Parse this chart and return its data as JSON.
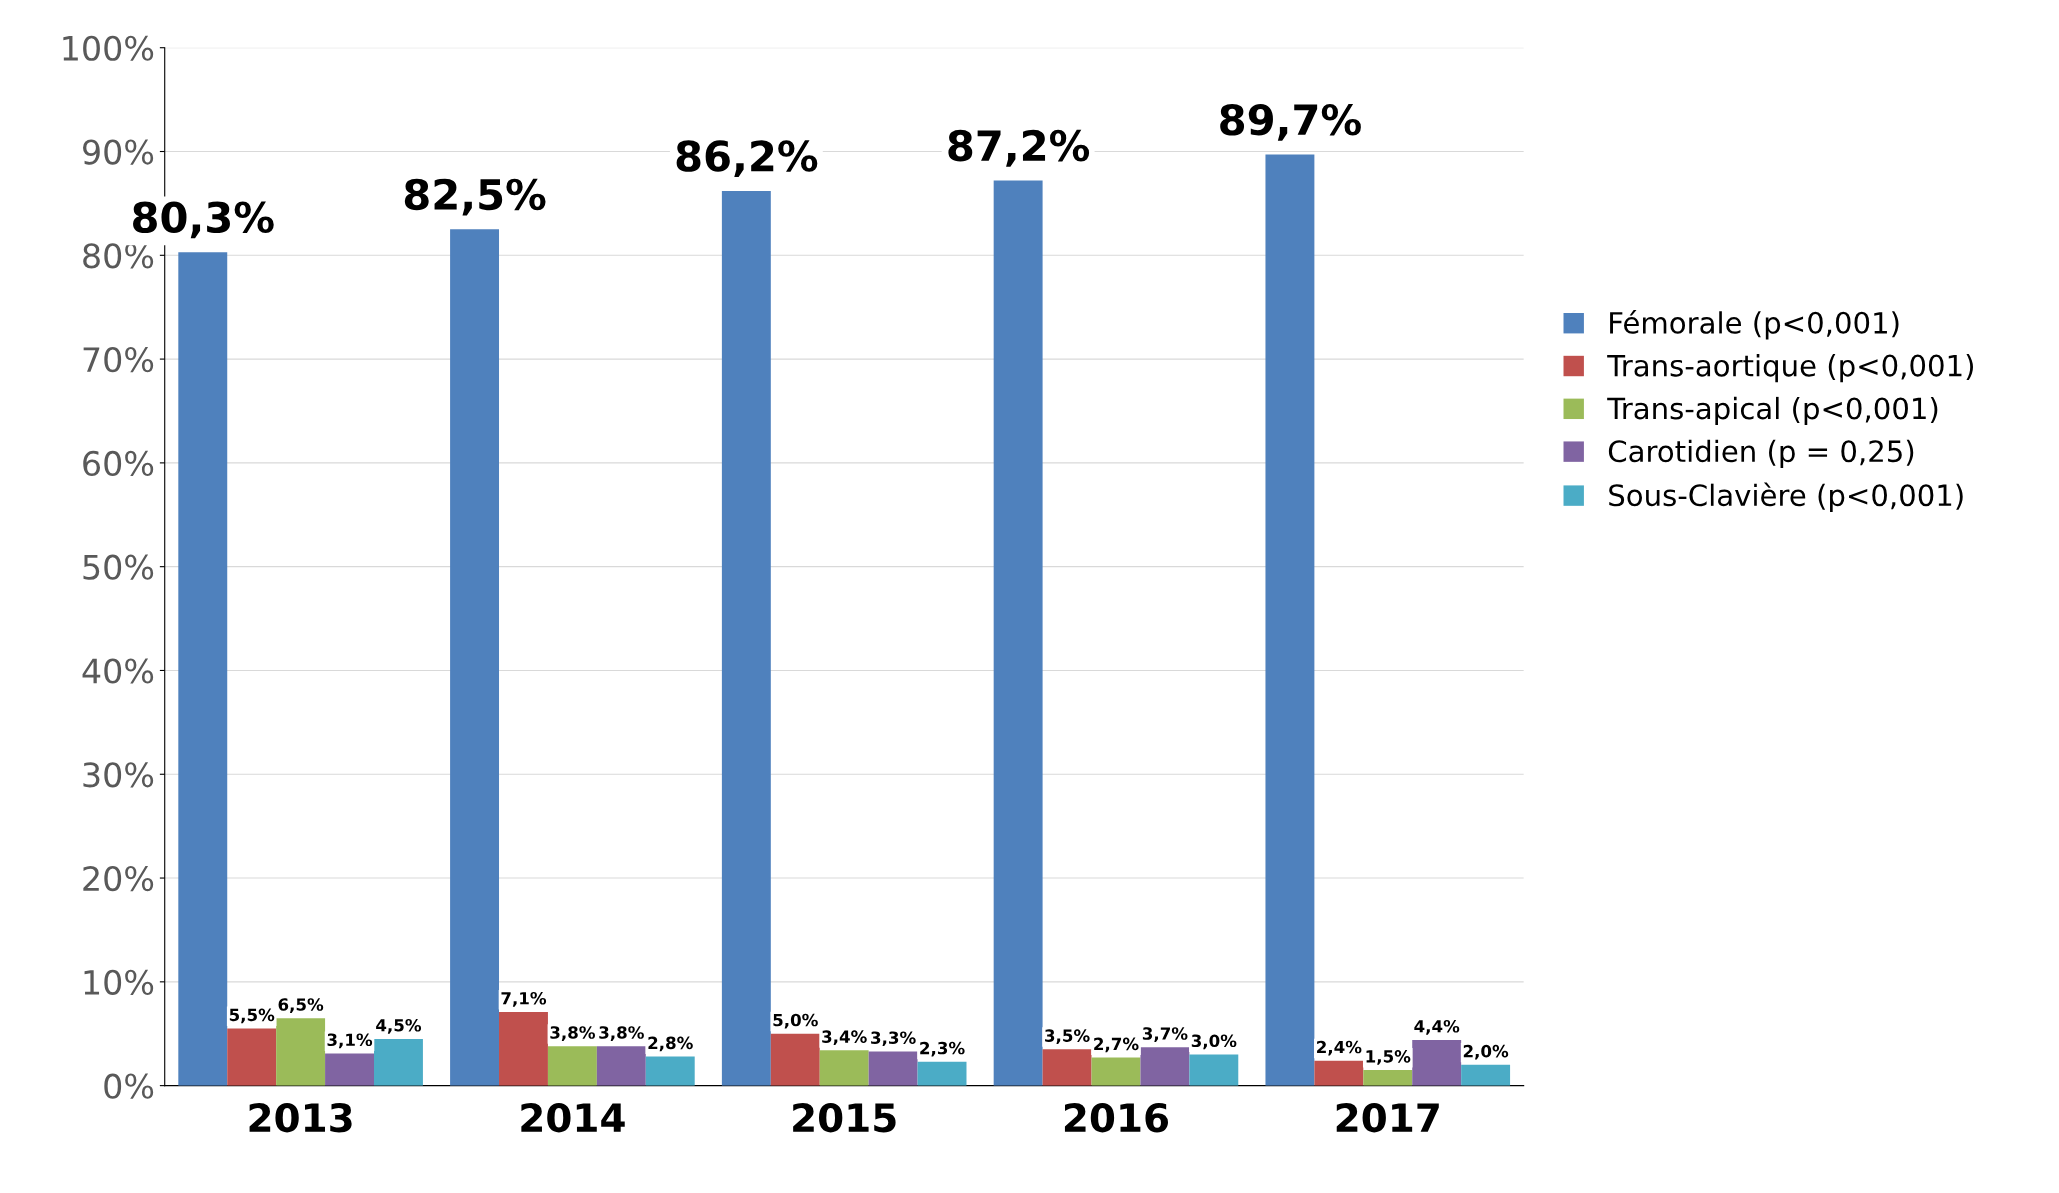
{
  "chart_data": {
    "type": "bar",
    "categories": [
      "2013",
      "2014",
      "2015",
      "2016",
      "2017"
    ],
    "series": [
      {
        "name": "Fémorale (p<0,001)",
        "color": "#4f81bd",
        "values": [
          80.3,
          82.5,
          86.2,
          87.2,
          89.7
        ],
        "value_labels": [
          "80,3%",
          "82,5%",
          "86,2%",
          "87,2%",
          "89,7%"
        ]
      },
      {
        "name": "Trans-aortique (p<0,001)",
        "color": "#c0504d",
        "values": [
          5.5,
          7.1,
          5.0,
          3.5,
          2.4
        ],
        "value_labels": [
          "5,5%",
          "7,1%",
          "5,0%",
          "3,5%",
          "2,4%"
        ]
      },
      {
        "name": "Trans-apical (p<0,001)",
        "color": "#9bbb59",
        "values": [
          6.5,
          3.8,
          3.4,
          2.7,
          1.5
        ],
        "value_labels": [
          "6,5%",
          "3,8%",
          "3,4%",
          "2,7%",
          "1,5%"
        ]
      },
      {
        "name": "Carotidien (p = 0,25)",
        "color": "#8064a2",
        "values": [
          3.1,
          3.8,
          3.3,
          3.7,
          4.4
        ],
        "value_labels": [
          "3,1%",
          "3,8%",
          "3,3%",
          "3,7%",
          "4,4%"
        ]
      },
      {
        "name": "Sous-Clavière (p<0,001)",
        "color": "#4bacc6",
        "values": [
          4.5,
          2.8,
          2.3,
          3.0,
          2.0
        ],
        "value_labels": [
          "4,5%",
          "2,8%",
          "2,3%",
          "3,0%",
          "2,0%"
        ]
      }
    ],
    "ylim": [
      0,
      100
    ],
    "yticks": [
      {
        "value": 0,
        "label": "0%"
      },
      {
        "value": 10,
        "label": "10%"
      },
      {
        "value": 20,
        "label": "20%"
      },
      {
        "value": 30,
        "label": "30%"
      },
      {
        "value": 40,
        "label": "40%"
      },
      {
        "value": 50,
        "label": "50%"
      },
      {
        "value": 60,
        "label": "60%"
      },
      {
        "value": 70,
        "label": "70%"
      },
      {
        "value": 80,
        "label": "80%"
      },
      {
        "value": 90,
        "label": "90%"
      },
      {
        "value": 100,
        "label": "100%"
      }
    ],
    "grid": "y",
    "legend": "right"
  }
}
